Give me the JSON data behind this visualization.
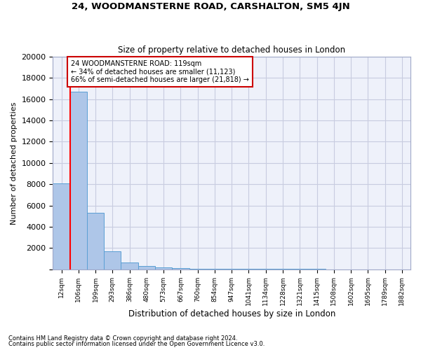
{
  "title": "24, WOODMANSTERNE ROAD, CARSHALTON, SM5 4JN",
  "subtitle": "Size of property relative to detached houses in London",
  "xlabel": "Distribution of detached houses by size in London",
  "ylabel": "Number of detached properties",
  "bar_labels": [
    "12sqm",
    "106sqm",
    "199sqm",
    "293sqm",
    "386sqm",
    "480sqm",
    "573sqm",
    "667sqm",
    "760sqm",
    "854sqm",
    "947sqm",
    "1041sqm",
    "1134sqm",
    "1228sqm",
    "1321sqm",
    "1415sqm",
    "1508sqm",
    "1602sqm",
    "1695sqm",
    "1789sqm",
    "1882sqm"
  ],
  "bar_values": [
    8100,
    16700,
    5300,
    1700,
    650,
    330,
    180,
    100,
    70,
    50,
    35,
    25,
    18,
    14,
    10,
    8,
    6,
    5,
    4,
    3,
    2
  ],
  "bar_color": "#aec6e8",
  "bar_edgecolor": "#5a9fd4",
  "property_label": "24 WOODMANSTERNE ROAD: 119sqm",
  "pct_smaller": 34,
  "n_smaller": 11123,
  "pct_larger": 66,
  "n_larger": 21818,
  "red_line_bin": 1,
  "annotation_box_color": "#ffffff",
  "annotation_box_edgecolor": "#cc0000",
  "ylim": [
    0,
    20000
  ],
  "yticks": [
    0,
    2000,
    4000,
    6000,
    8000,
    10000,
    12000,
    14000,
    16000,
    18000,
    20000
  ],
  "footnote1": "Contains HM Land Registry data © Crown copyright and database right 2024.",
  "footnote2": "Contains public sector information licensed under the Open Government Licence v3.0.",
  "bg_color": "#eef1fa",
  "grid_color": "#c8cce0"
}
